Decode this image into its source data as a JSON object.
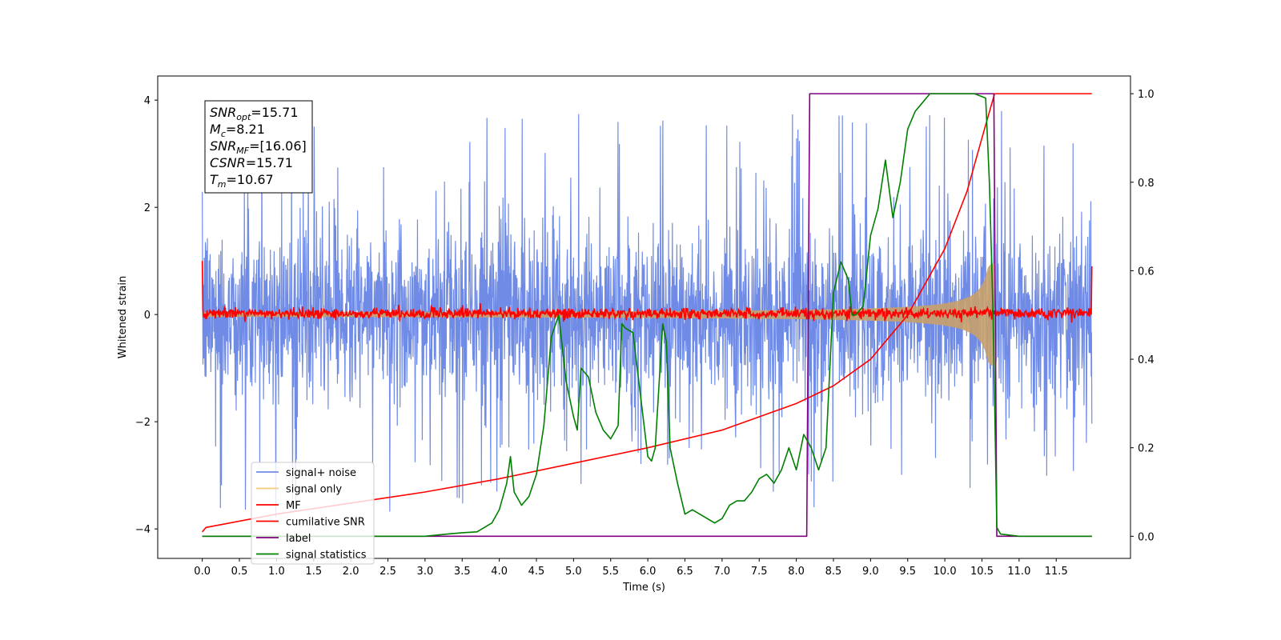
{
  "chart_data": {
    "type": "line",
    "xlabel": "Time (s)",
    "ylabel": "Whitened strain",
    "xlim": [
      -0.6,
      12.5
    ],
    "ylim": [
      -4.55,
      4.45
    ],
    "y2lim": [
      -0.05,
      1.04
    ],
    "x_ticks": [
      "0.0",
      "0.5",
      "1.0",
      "1.5",
      "2.0",
      "2.5",
      "3.0",
      "3.5",
      "4.0",
      "4.5",
      "5.0",
      "5.5",
      "6.0",
      "6.5",
      "7.0",
      "7.5",
      "8.0",
      "8.5",
      "9.0",
      "9.5",
      "10.0",
      "10.5",
      "11.0",
      "11.5"
    ],
    "x_tick_values": [
      0,
      0.5,
      1,
      1.5,
      2,
      2.5,
      3,
      3.5,
      4,
      4.5,
      5,
      5.5,
      6,
      6.5,
      7,
      7.5,
      8,
      8.5,
      9,
      9.5,
      10,
      10.5,
      11,
      11.5
    ],
    "y_ticks": [
      "4",
      "2",
      "0",
      "−2",
      "−4"
    ],
    "y_tick_values": [
      4,
      2,
      0,
      -2,
      -4
    ],
    "y2_ticks": [
      "1.0",
      "0.8",
      "0.6",
      "0.4",
      "0.2",
      "0.0"
    ],
    "y2_tick_values": [
      1.0,
      0.8,
      0.6,
      0.4,
      0.2,
      0.0
    ],
    "annotation": [
      {
        "main": "SNR",
        "sub": "opt",
        "rest": "=15.71"
      },
      {
        "main": "M",
        "sub": "c",
        "rest": "=8.21"
      },
      {
        "main": "SNR",
        "sub": "MF",
        "rest": "=[16.06]"
      },
      {
        "main": "CSNR",
        "sub": "",
        "rest": "=15.71"
      },
      {
        "main": "T",
        "sub": "m",
        "rest": "=10.67"
      }
    ],
    "legend_position": "lower-left",
    "series": [
      {
        "name": "signal+ noise",
        "color": "#6f8be6",
        "axis": "left",
        "x_range": [
          0,
          11.98
        ],
        "amplitude": 1.5,
        "peak": 4.0,
        "trough": -4.1
      },
      {
        "name": "signal only",
        "color": "#f5c97a",
        "axis": "left",
        "x_range": [
          0,
          10.67
        ],
        "envelope_start": 0.02,
        "envelope_end": 0.95,
        "merger_time": 10.67
      },
      {
        "name": "MF",
        "color": "#ff0000",
        "axis": "left",
        "x_range": [
          0,
          11.98
        ],
        "baseline": 0.02,
        "noise": 0.09,
        "endpoints": [
          1.0,
          0.9
        ]
      },
      {
        "name": "cumilative SNR",
        "color": "#ff0000",
        "axis": "right",
        "points": [
          [
            0,
            0.01
          ],
          [
            0.05,
            0.02
          ],
          [
            1,
            0.05
          ],
          [
            2,
            0.075
          ],
          [
            3,
            0.1
          ],
          [
            4,
            0.13
          ],
          [
            5,
            0.165
          ],
          [
            6,
            0.2
          ],
          [
            7,
            0.24
          ],
          [
            8,
            0.3
          ],
          [
            8.5,
            0.34
          ],
          [
            9,
            0.4
          ],
          [
            9.5,
            0.5
          ],
          [
            10,
            0.65
          ],
          [
            10.3,
            0.78
          ],
          [
            10.5,
            0.9
          ],
          [
            10.67,
            1.0
          ],
          [
            11.98,
            1.0
          ]
        ]
      },
      {
        "name": "label",
        "color": "#800080",
        "axis": "right",
        "points": [
          [
            0,
            0
          ],
          [
            8.14,
            0
          ],
          [
            8.18,
            1
          ],
          [
            10.66,
            1
          ],
          [
            10.7,
            0
          ],
          [
            11.98,
            0
          ]
        ]
      },
      {
        "name": "signal statistics",
        "color": "#008000",
        "axis": "right",
        "points": [
          [
            0,
            0
          ],
          [
            1,
            0
          ],
          [
            2,
            0
          ],
          [
            3,
            0
          ],
          [
            3.3,
            0.005
          ],
          [
            3.5,
            0.008
          ],
          [
            3.7,
            0.01
          ],
          [
            3.9,
            0.03
          ],
          [
            4.0,
            0.06
          ],
          [
            4.1,
            0.12
          ],
          [
            4.15,
            0.18
          ],
          [
            4.2,
            0.1
          ],
          [
            4.3,
            0.07
          ],
          [
            4.4,
            0.09
          ],
          [
            4.5,
            0.14
          ],
          [
            4.6,
            0.25
          ],
          [
            4.7,
            0.45
          ],
          [
            4.8,
            0.5
          ],
          [
            4.9,
            0.35
          ],
          [
            5.0,
            0.27
          ],
          [
            5.05,
            0.24
          ],
          [
            5.1,
            0.38
          ],
          [
            5.2,
            0.36
          ],
          [
            5.3,
            0.28
          ],
          [
            5.4,
            0.24
          ],
          [
            5.5,
            0.22
          ],
          [
            5.6,
            0.25
          ],
          [
            5.65,
            0.48
          ],
          [
            5.7,
            0.47
          ],
          [
            5.8,
            0.46
          ],
          [
            5.9,
            0.32
          ],
          [
            6.0,
            0.18
          ],
          [
            6.05,
            0.17
          ],
          [
            6.1,
            0.2
          ],
          [
            6.2,
            0.48
          ],
          [
            6.25,
            0.44
          ],
          [
            6.3,
            0.2
          ],
          [
            6.4,
            0.12
          ],
          [
            6.5,
            0.05
          ],
          [
            6.6,
            0.06
          ],
          [
            6.7,
            0.05
          ],
          [
            6.8,
            0.04
          ],
          [
            6.9,
            0.03
          ],
          [
            7.0,
            0.04
          ],
          [
            7.1,
            0.07
          ],
          [
            7.2,
            0.08
          ],
          [
            7.3,
            0.08
          ],
          [
            7.4,
            0.1
          ],
          [
            7.5,
            0.13
          ],
          [
            7.6,
            0.14
          ],
          [
            7.7,
            0.12
          ],
          [
            7.8,
            0.15
          ],
          [
            7.9,
            0.2
          ],
          [
            8.0,
            0.15
          ],
          [
            8.1,
            0.23
          ],
          [
            8.2,
            0.2
          ],
          [
            8.3,
            0.15
          ],
          [
            8.4,
            0.2
          ],
          [
            8.5,
            0.55
          ],
          [
            8.6,
            0.62
          ],
          [
            8.7,
            0.58
          ],
          [
            8.75,
            0.5
          ],
          [
            8.8,
            0.5
          ],
          [
            8.9,
            0.52
          ],
          [
            9.0,
            0.68
          ],
          [
            9.1,
            0.74
          ],
          [
            9.2,
            0.85
          ],
          [
            9.3,
            0.72
          ],
          [
            9.4,
            0.8
          ],
          [
            9.5,
            0.92
          ],
          [
            9.6,
            0.96
          ],
          [
            9.7,
            0.98
          ],
          [
            9.8,
            1.0
          ],
          [
            10.0,
            1.0
          ],
          [
            10.2,
            1.0
          ],
          [
            10.4,
            1.0
          ],
          [
            10.55,
            0.99
          ],
          [
            10.6,
            0.8
          ],
          [
            10.65,
            0.5
          ],
          [
            10.7,
            0.02
          ],
          [
            10.75,
            0.005
          ],
          [
            11.0,
            0
          ],
          [
            11.98,
            0
          ]
        ]
      }
    ]
  }
}
